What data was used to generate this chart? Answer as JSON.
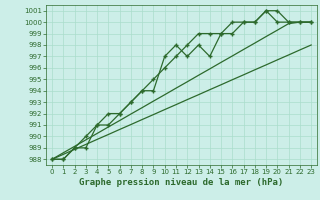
{
  "x_values": [
    0,
    1,
    2,
    3,
    4,
    5,
    6,
    7,
    8,
    9,
    10,
    11,
    12,
    13,
    14,
    15,
    16,
    17,
    18,
    19,
    20,
    21,
    22,
    23
  ],
  "y_main": [
    988,
    988,
    989,
    989,
    991,
    991,
    992,
    993,
    994,
    994,
    997,
    998,
    997,
    998,
    997,
    999,
    999,
    1000,
    1000,
    1001,
    1001,
    1000,
    1000,
    1000
  ],
  "y_line2": [
    988,
    988,
    989,
    990,
    991,
    992,
    992,
    993,
    994,
    995,
    996,
    997,
    998,
    999,
    999,
    999,
    1000,
    1000,
    1000,
    1001,
    1000,
    1000,
    1000,
    1000
  ],
  "y_trend1": [
    988,
    988.57,
    989.13,
    989.7,
    990.26,
    990.83,
    991.39,
    991.96,
    992.52,
    993.09,
    993.65,
    994.22,
    994.78,
    995.35,
    995.91,
    996.48,
    997.04,
    997.61,
    998.17,
    998.74,
    999.3,
    999.87,
    1000.0,
    1000.0
  ],
  "y_trend2": [
    988,
    988.43,
    988.87,
    989.3,
    989.74,
    990.17,
    990.61,
    991.04,
    991.48,
    991.91,
    992.35,
    992.78,
    993.22,
    993.65,
    994.09,
    994.52,
    994.96,
    995.39,
    995.83,
    996.26,
    996.7,
    997.13,
    997.57,
    998.0
  ],
  "bg_color": "#cceee8",
  "grid_color": "#aaddcc",
  "line_color": "#2d6a2d",
  "title": "Graphe pression niveau de la mer (hPa)",
  "ylim": [
    987.5,
    1001.5
  ],
  "xlim": [
    -0.5,
    23.5
  ],
  "yticks": [
    988,
    989,
    990,
    991,
    992,
    993,
    994,
    995,
    996,
    997,
    998,
    999,
    1000,
    1001
  ],
  "xtick_labels": [
    "0",
    "1",
    "2",
    "3",
    "4",
    "5",
    "6",
    "7",
    "8",
    "9",
    "10",
    "11",
    "12",
    "13",
    "14",
    "15",
    "16",
    "17",
    "18",
    "19",
    "20",
    "21",
    "22",
    "23"
  ]
}
